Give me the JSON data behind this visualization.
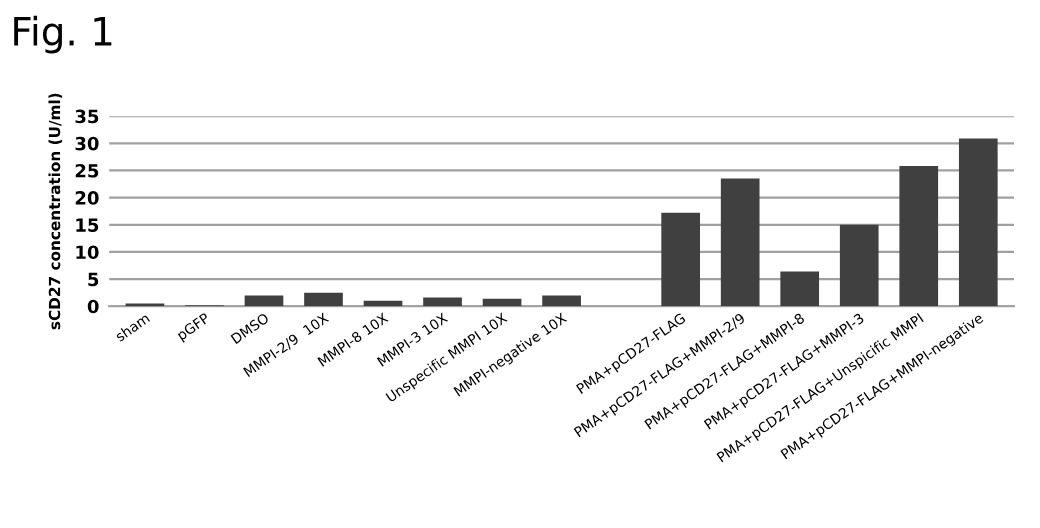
{
  "chart_data": {
    "type": "bar",
    "title": "Fig. 1",
    "ylabel": "sCD27 concentration (U/ml)",
    "categories": [
      "sham",
      "pGFP",
      "DMSO",
      "MMPI-2/9  10X",
      "MMPI-8 10X",
      "MMPI-3 10X",
      "Unspecific MMPI 10X",
      "MMPI-negative 10X",
      null,
      "PMA+pCD27-FLAG",
      "PMA+pCD27-FLAG+MMPI-2/9",
      "PMA+pCD27-FLAG+MMPI-8",
      "PMA+pCD27-FLAG+MMPI-3",
      "PMA+pCD27-FLAG+Unspicific MMPI",
      "PMA+pCD27-FLAG+MMPI-negative"
    ],
    "values": [
      0.5,
      0.2,
      2.0,
      2.5,
      1.0,
      1.6,
      1.4,
      2.0,
      null,
      17.2,
      23.5,
      6.4,
      15.0,
      25.8,
      30.9
    ],
    "color": "#404040",
    "ylim": [
      0,
      35
    ],
    "yticks": [
      0,
      5,
      10,
      15,
      20,
      25,
      30,
      35
    ],
    "grid": "y"
  }
}
